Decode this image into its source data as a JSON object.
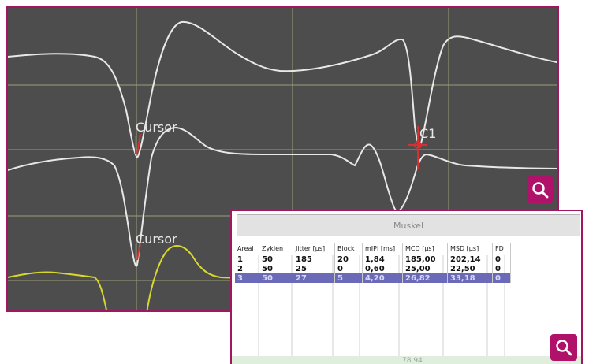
{
  "scope": {
    "labels": [
      "Cursor",
      "Cursor",
      "C1"
    ],
    "colors": {
      "background": "#4d4d4d",
      "grid": "#b8b88a",
      "trace": "#e8e8e8",
      "yellow_trace": "#d8d82a",
      "marker": "#d83030",
      "frame": "#a0175f"
    }
  },
  "zoom_icon": "magnifier-icon",
  "panel": {
    "header": "Muskel",
    "columns": [
      "Areal",
      "Zyklen",
      "Jitter [µs]",
      "Block",
      "mIPI [ms]",
      "MCD [µs]",
      "MSD [µs]",
      "FD"
    ],
    "rows": [
      [
        "1",
        "50",
        "185",
        "20",
        "1,84",
        "185,00",
        "202,14",
        "0"
      ],
      [
        "2",
        "50",
        "25",
        "0",
        "0,60",
        "25,00",
        "22,50",
        "0"
      ],
      [
        "3",
        "50",
        "27",
        "5",
        "4,20",
        "26,82",
        "33,18",
        "0"
      ]
    ],
    "selected_row": 2,
    "footer_value": "78,94"
  }
}
